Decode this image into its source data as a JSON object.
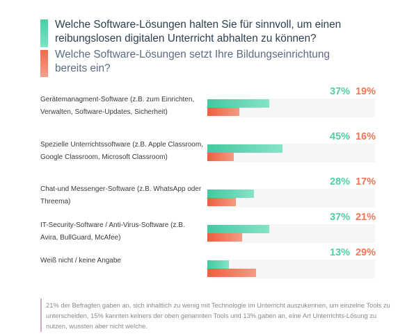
{
  "legend": [
    {
      "label": "Welche Software-Lösungen halten Sie für sinnvoll, um einen reibungslosen digitalen Unterricht abhalten zu können?",
      "color": "#52cda7"
    },
    {
      "label": "Welche Software-Lösungen setzt Ihre Bildungseinrichtung bereits ein?",
      "color": "#ef7657"
    }
  ],
  "chart_data": {
    "type": "bar",
    "orientation": "horizontal",
    "categories": [
      "Gerätemanagment-Software (z.B. zum Einrichten, Verwalten, Software-Updates, Sicherheit)",
      "Spezielle Unterrichtssoftware (z.B. Apple Classroom, Google Classroom, Microsoft Classroom)",
      "Chat-und Messenger-Software (z.B. WhatsApp oder Threema)",
      "IT-Security-Software / Anti-Virus-Software (z.B. Avira, BullGuard, McAfee)",
      "Weiß nicht / keine Angabe"
    ],
    "series": [
      {
        "name": "Welche Software-Lösungen halten Sie für sinnvoll, um einen reibungslosen digitalen Unterricht abhalten zu können?",
        "color": "#52cda7",
        "values": [
          37,
          45,
          28,
          37,
          13
        ],
        "labels": [
          "37%",
          "45%",
          "28%",
          "37%",
          "13%"
        ]
      },
      {
        "name": "Welche Software-Lösungen setzt Ihre Bildungseinrichtung bereits ein?",
        "color": "#ef7657",
        "values": [
          19,
          16,
          17,
          21,
          29
        ],
        "labels": [
          "19%",
          "16%",
          "17%",
          "21%",
          "29%"
        ]
      }
    ],
    "xlim": [
      0,
      100
    ],
    "grid": false,
    "legend_placement": "top"
  },
  "note": "21% der Befragten gaben an, sich inhaltlich zu wenig mit Technologie im Unterricht auszukennen, um einzelne Tools zu unterscheiden, 15% kannten keiners der oben genannten Tools und 13% gaben an, eine Art Unterrichts-Lösung zu nutzen, wussten aber nicht welche."
}
